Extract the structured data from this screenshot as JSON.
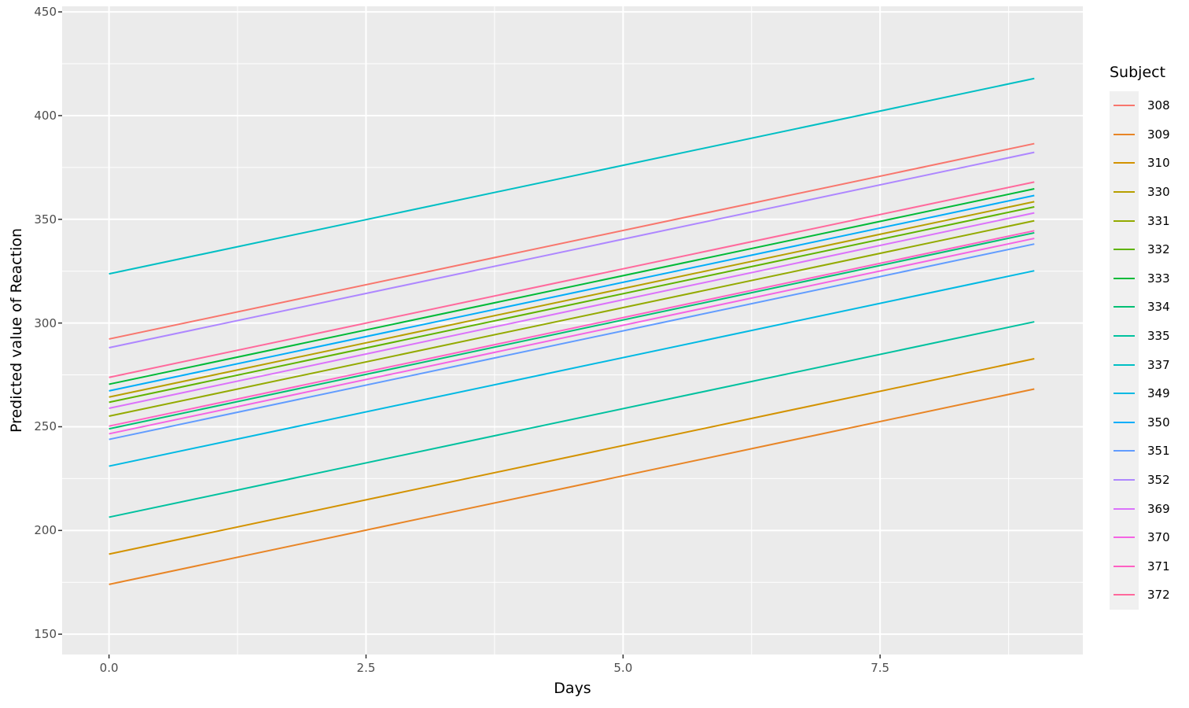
{
  "figure": {
    "background": "#FFFFFF",
    "panel_bg": "#EBEBEB",
    "grid_color": "#FFFFFF",
    "tick_mark_color": "#333333",
    "tick_label_color": "#4D4D4D",
    "title_color": "#000000",
    "legend_key_bg": "#F0F0F0"
  },
  "chart_data": {
    "type": "line",
    "title": "",
    "xlabel": "Days",
    "ylabel": "Predicted value of Reaction",
    "legend_title": "Subject",
    "legend_position": "right",
    "grid": true,
    "x_range": [
      0,
      9
    ],
    "xlim": [
      -0.456,
      9.472
    ],
    "ylim": [
      140.2,
      452.7
    ],
    "x_ticks": [
      {
        "value": 0,
        "label": "0.0"
      },
      {
        "value": 2.5,
        "label": "2.5"
      },
      {
        "value": 5,
        "label": "5.0"
      },
      {
        "value": 7.5,
        "label": "7.5"
      }
    ],
    "y_ticks": [
      {
        "value": 150,
        "label": "150"
      },
      {
        "value": 200,
        "label": "200"
      },
      {
        "value": 250,
        "label": "250"
      },
      {
        "value": 300,
        "label": "300"
      },
      {
        "value": 350,
        "label": "350"
      },
      {
        "value": 400,
        "label": "400"
      },
      {
        "value": 450,
        "label": "450"
      }
    ],
    "x_minor_gridlines": [
      1.25,
      3.75,
      6.25,
      8.75
    ],
    "y_minor_gridlines": [
      175,
      225,
      275,
      325,
      375,
      425
    ],
    "series": [
      {
        "name": "308",
        "color": "#F8766D",
        "x": [
          0,
          9
        ],
        "y": [
          292.3,
          386.5
        ]
      },
      {
        "name": "309",
        "color": "#E88526",
        "x": [
          0,
          9
        ],
        "y": [
          174.0,
          268.2
        ]
      },
      {
        "name": "310",
        "color": "#D39200",
        "x": [
          0,
          9
        ],
        "y": [
          188.6,
          282.8
        ]
      },
      {
        "name": "330",
        "color": "#B79F00",
        "x": [
          0,
          9
        ],
        "y": [
          264.3,
          358.5
        ]
      },
      {
        "name": "331",
        "color": "#93AA00",
        "x": [
          0,
          9
        ],
        "y": [
          255.1,
          349.3
        ]
      },
      {
        "name": "332",
        "color": "#5EB300",
        "x": [
          0,
          9
        ],
        "y": [
          261.8,
          356.0
        ]
      },
      {
        "name": "333",
        "color": "#00BA38",
        "x": [
          0,
          9
        ],
        "y": [
          270.5,
          364.7
        ]
      },
      {
        "name": "334",
        "color": "#00BF74",
        "x": [
          0,
          9
        ],
        "y": [
          249.0,
          343.5
        ]
      },
      {
        "name": "335",
        "color": "#00C19F",
        "x": [
          0,
          9
        ],
        "y": [
          206.4,
          300.6
        ]
      },
      {
        "name": "337",
        "color": "#00BFC4",
        "x": [
          0,
          9
        ],
        "y": [
          323.7,
          417.9
        ]
      },
      {
        "name": "349",
        "color": "#00B9E3",
        "x": [
          0,
          9
        ],
        "y": [
          231.0,
          325.2
        ]
      },
      {
        "name": "350",
        "color": "#00ADFA",
        "x": [
          0,
          9
        ],
        "y": [
          267.3,
          361.5
        ]
      },
      {
        "name": "351",
        "color": "#619CFF",
        "x": [
          0,
          9
        ],
        "y": [
          243.9,
          338.1
        ]
      },
      {
        "name": "352",
        "color": "#AE87FF",
        "x": [
          0,
          9
        ],
        "y": [
          288.1,
          382.3
        ]
      },
      {
        "name": "369",
        "color": "#DB72FB",
        "x": [
          0,
          9
        ],
        "y": [
          258.9,
          353.1
        ]
      },
      {
        "name": "370",
        "color": "#F564E3",
        "x": [
          0,
          9
        ],
        "y": [
          246.6,
          340.8
        ]
      },
      {
        "name": "371",
        "color": "#FF61C3",
        "x": [
          0,
          9
        ],
        "y": [
          250.3,
          344.5
        ]
      },
      {
        "name": "372",
        "color": "#FF699C",
        "x": [
          0,
          9
        ],
        "y": [
          273.8,
          368.0
        ]
      }
    ]
  }
}
